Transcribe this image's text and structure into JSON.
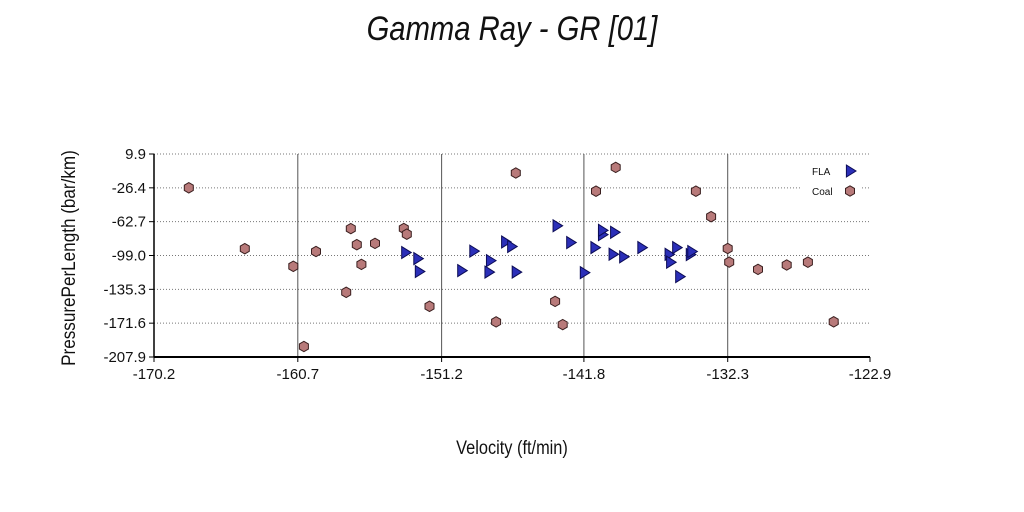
{
  "chart_data": {
    "type": "scatter",
    "title": "Gamma Ray - GR [01]",
    "xlabel": "Velocity (ft/min)",
    "ylabel": "PressurePerLength (bar/km)",
    "xlim": [
      -170.2,
      -122.9
    ],
    "ylim": [
      -207.9,
      9.9
    ],
    "x_ticks": [
      "-170.2",
      "-160.7",
      "-151.2",
      "-141.8",
      "-132.3",
      "-122.9"
    ],
    "y_ticks": [
      "9.9",
      "-26.4",
      "-62.7",
      "-99.0",
      "-135.3",
      "-171.6",
      "-207.9"
    ],
    "grid": "dotted horizontal, solid vertical",
    "legend_position": "top-right",
    "series": [
      {
        "name": "FLA",
        "marker": "triangle-right",
        "color": "#2b2fb8",
        "points": [
          [
            -153.6,
            -95.8
          ],
          [
            -152.8,
            -102.3
          ],
          [
            -152.7,
            -116.2
          ],
          [
            -149.9,
            -115.2
          ],
          [
            -149.1,
            -94.3
          ],
          [
            -148.0,
            -104.5
          ],
          [
            -148.1,
            -116.8
          ],
          [
            -147.0,
            -84.5
          ],
          [
            -146.6,
            -89.3
          ],
          [
            -146.3,
            -116.8
          ],
          [
            -143.6,
            -67.1
          ],
          [
            -142.7,
            -85.1
          ],
          [
            -141.8,
            -117.4
          ],
          [
            -141.1,
            -90.5
          ],
          [
            -140.6,
            -76.6
          ],
          [
            -140.6,
            -72.0
          ],
          [
            -139.9,
            -97.6
          ],
          [
            -139.8,
            -74.1
          ],
          [
            -139.2,
            -100.4
          ],
          [
            -138.0,
            -90.5
          ],
          [
            -136.2,
            -97.7
          ],
          [
            -136.1,
            -106.2
          ],
          [
            -135.7,
            -90.5
          ],
          [
            -135.5,
            -121.6
          ],
          [
            -134.8,
            -98.0
          ],
          [
            -134.7,
            -94.7
          ]
        ]
      },
      {
        "name": "Coal",
        "marker": "hexagon",
        "color": "#b87a7a",
        "points": [
          [
            -167.9,
            -26.4
          ],
          [
            -164.2,
            -91.7
          ],
          [
            -161.0,
            -110.6
          ],
          [
            -160.3,
            -196.6
          ],
          [
            -159.5,
            -94.7
          ],
          [
            -157.5,
            -138.5
          ],
          [
            -157.2,
            -70.1
          ],
          [
            -156.8,
            -87.4
          ],
          [
            -156.5,
            -108.5
          ],
          [
            -155.6,
            -86.0
          ],
          [
            -153.7,
            -70.0
          ],
          [
            -153.5,
            -76.2
          ],
          [
            -152.0,
            -153.5
          ],
          [
            -147.6,
            -170.2
          ],
          [
            -146.3,
            -10.5
          ],
          [
            -143.7,
            -148.3
          ],
          [
            -143.2,
            -173.1
          ],
          [
            -141.0,
            -30.0
          ],
          [
            -139.7,
            -4.5
          ],
          [
            -134.4,
            -30.0
          ],
          [
            -133.4,
            -57.4
          ],
          [
            -132.3,
            -91.5
          ],
          [
            -132.2,
            -106.1
          ],
          [
            -130.3,
            -113.9
          ],
          [
            -128.4,
            -109.2
          ],
          [
            -127.0,
            -106.2
          ],
          [
            -125.3,
            -170.1
          ]
        ]
      }
    ]
  }
}
